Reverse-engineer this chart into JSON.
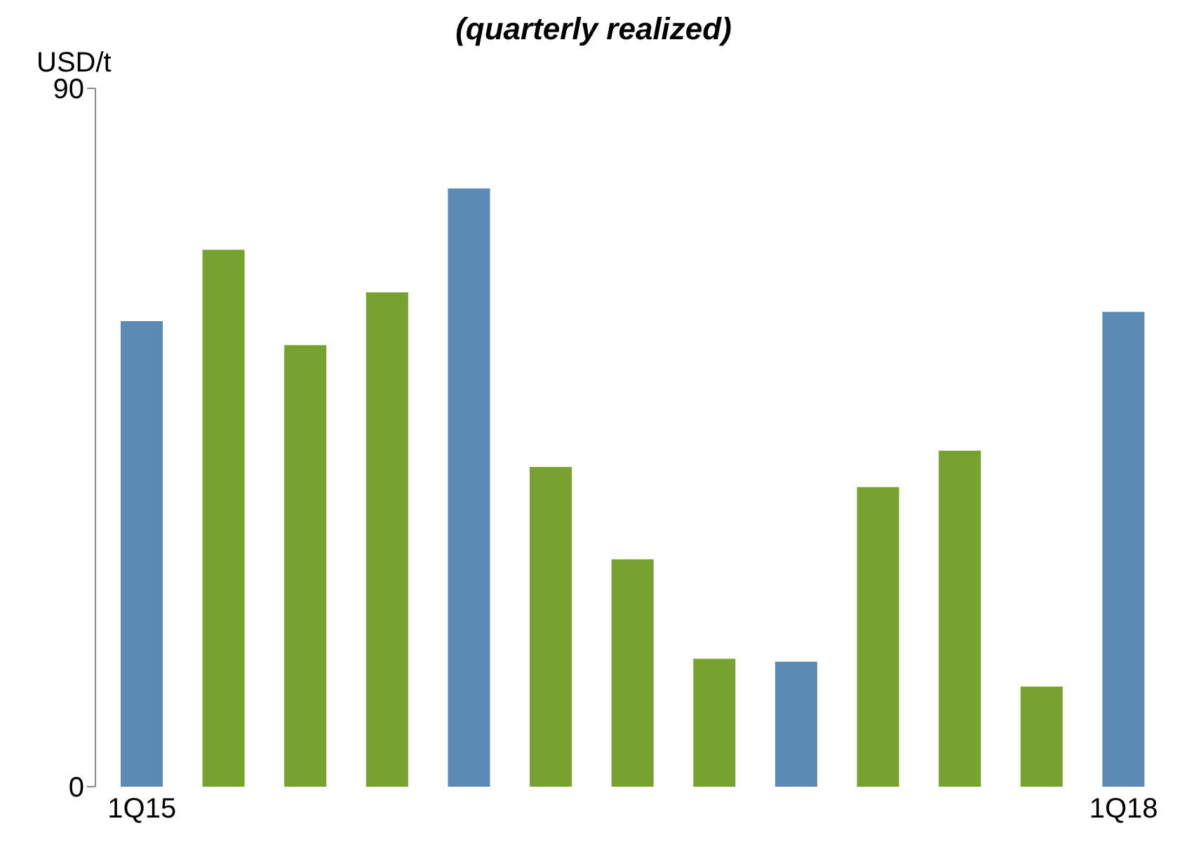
{
  "chart_data": {
    "type": "bar",
    "subtitle": "(quarterly realized)",
    "ylabel": "USD/t",
    "categories": [
      "1Q15",
      null,
      null,
      null,
      null,
      null,
      null,
      null,
      null,
      null,
      null,
      null,
      "1Q18"
    ],
    "values": [
      60,
      69.2,
      56.9,
      63.7,
      77.1,
      41.2,
      29.3,
      16.5,
      16.1,
      38.6,
      43.3,
      12.9,
      61.2
    ],
    "colors": [
      "#5b8bb4",
      "#78a22f",
      "#78a22f",
      "#78a22f",
      "#5b8bb4",
      "#78a22f",
      "#78a22f",
      "#78a22f",
      "#5b8bb4",
      "#78a22f",
      "#78a22f",
      "#78a22f",
      "#5b8bb4"
    ],
    "ylim": [
      0,
      90
    ],
    "yticks": [
      0,
      90
    ]
  }
}
